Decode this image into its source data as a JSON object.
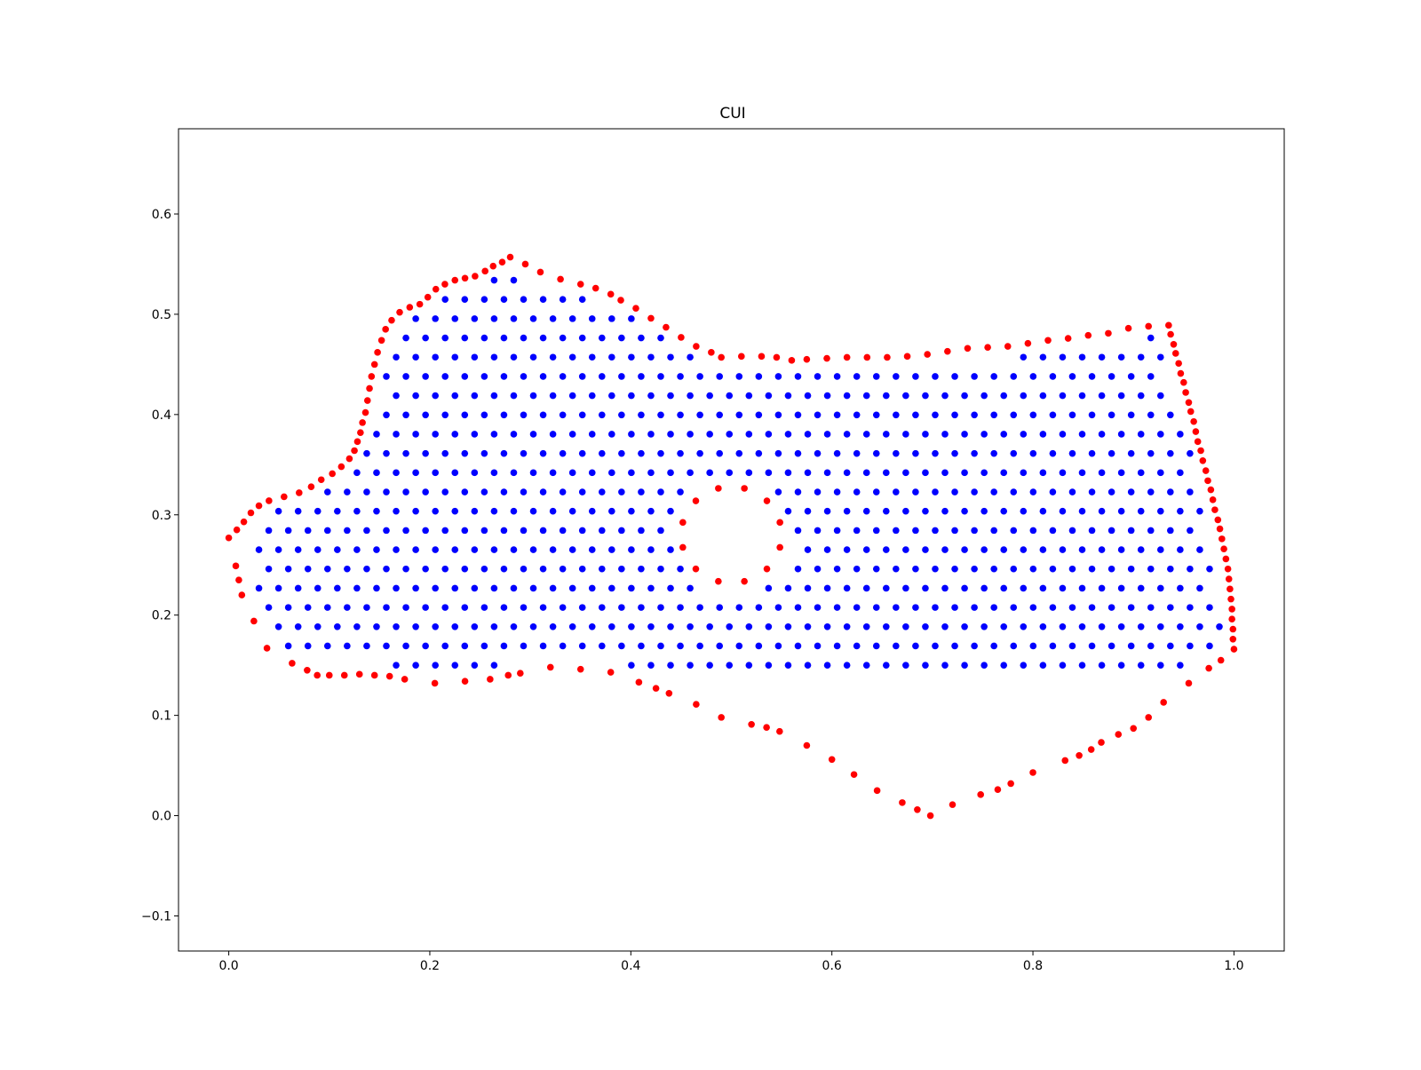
{
  "chart_data": {
    "type": "scatter",
    "title": "CUI",
    "xlabel": "",
    "ylabel": "",
    "xlim": [
      -0.05,
      1.05
    ],
    "ylim": [
      -0.135,
      0.685
    ],
    "xticks": [
      0.0,
      0.2,
      0.4,
      0.6,
      0.8,
      1.0
    ],
    "xtick_labels": [
      "0.0",
      "0.2",
      "0.4",
      "0.6",
      "0.8",
      "1.0"
    ],
    "yticks": [
      -0.1,
      0.0,
      0.1,
      0.2,
      0.3,
      0.4,
      0.5,
      0.6
    ],
    "ytick_labels": [
      "−0.1",
      "0.0",
      "0.1",
      "0.2",
      "0.3",
      "0.4",
      "0.5",
      "0.6"
    ],
    "grid": false,
    "legend": "none",
    "series": [
      {
        "role": "boundary",
        "color": "#ff0000",
        "outer_boundary": [
          [
            0.0,
            0.277
          ],
          [
            0.008,
            0.285
          ],
          [
            0.015,
            0.293
          ],
          [
            0.022,
            0.302
          ],
          [
            0.03,
            0.309
          ],
          [
            0.04,
            0.314
          ],
          [
            0.055,
            0.318
          ],
          [
            0.07,
            0.322
          ],
          [
            0.082,
            0.328
          ],
          [
            0.092,
            0.335
          ],
          [
            0.103,
            0.341
          ],
          [
            0.112,
            0.348
          ],
          [
            0.12,
            0.356
          ],
          [
            0.125,
            0.364
          ],
          [
            0.128,
            0.373
          ],
          [
            0.131,
            0.382
          ],
          [
            0.133,
            0.392
          ],
          [
            0.136,
            0.402
          ],
          [
            0.138,
            0.414
          ],
          [
            0.14,
            0.426
          ],
          [
            0.142,
            0.438
          ],
          [
            0.145,
            0.45
          ],
          [
            0.148,
            0.462
          ],
          [
            0.152,
            0.474
          ],
          [
            0.156,
            0.485
          ],
          [
            0.162,
            0.494
          ],
          [
            0.17,
            0.502
          ],
          [
            0.18,
            0.507
          ],
          [
            0.19,
            0.51
          ],
          [
            0.198,
            0.517
          ],
          [
            0.206,
            0.525
          ],
          [
            0.215,
            0.53
          ],
          [
            0.225,
            0.534
          ],
          [
            0.235,
            0.536
          ],
          [
            0.245,
            0.538
          ],
          [
            0.255,
            0.543
          ],
          [
            0.263,
            0.548
          ],
          [
            0.272,
            0.552
          ],
          [
            0.28,
            0.557
          ],
          [
            0.295,
            0.55
          ],
          [
            0.31,
            0.542
          ],
          [
            0.33,
            0.535
          ],
          [
            0.35,
            0.53
          ],
          [
            0.365,
            0.526
          ],
          [
            0.38,
            0.52
          ],
          [
            0.39,
            0.514
          ],
          [
            0.405,
            0.506
          ],
          [
            0.42,
            0.496
          ],
          [
            0.435,
            0.487
          ],
          [
            0.45,
            0.477
          ],
          [
            0.465,
            0.468
          ],
          [
            0.48,
            0.462
          ],
          [
            0.49,
            0.457
          ],
          [
            0.51,
            0.458
          ],
          [
            0.53,
            0.458
          ],
          [
            0.545,
            0.457
          ],
          [
            0.56,
            0.454
          ],
          [
            0.575,
            0.455
          ],
          [
            0.595,
            0.456
          ],
          [
            0.615,
            0.457
          ],
          [
            0.635,
            0.457
          ],
          [
            0.655,
            0.457
          ],
          [
            0.675,
            0.458
          ],
          [
            0.695,
            0.46
          ],
          [
            0.715,
            0.463
          ],
          [
            0.735,
            0.466
          ],
          [
            0.755,
            0.467
          ],
          [
            0.775,
            0.468
          ],
          [
            0.795,
            0.471
          ],
          [
            0.815,
            0.474
          ],
          [
            0.835,
            0.476
          ],
          [
            0.855,
            0.479
          ],
          [
            0.875,
            0.481
          ],
          [
            0.895,
            0.486
          ],
          [
            0.915,
            0.488
          ],
          [
            0.935,
            0.489
          ],
          [
            0.937,
            0.48
          ],
          [
            0.94,
            0.47
          ],
          [
            0.942,
            0.461
          ],
          [
            0.945,
            0.451
          ],
          [
            0.947,
            0.441
          ],
          [
            0.95,
            0.432
          ],
          [
            0.952,
            0.422
          ],
          [
            0.955,
            0.412
          ],
          [
            0.957,
            0.403
          ],
          [
            0.96,
            0.393
          ],
          [
            0.962,
            0.383
          ],
          [
            0.964,
            0.373
          ],
          [
            0.967,
            0.364
          ],
          [
            0.969,
            0.354
          ],
          [
            0.972,
            0.344
          ],
          [
            0.974,
            0.334
          ],
          [
            0.977,
            0.325
          ],
          [
            0.979,
            0.315
          ],
          [
            0.981,
            0.305
          ],
          [
            0.984,
            0.295
          ],
          [
            0.986,
            0.286
          ],
          [
            0.988,
            0.276
          ],
          [
            0.99,
            0.266
          ],
          [
            0.992,
            0.256
          ],
          [
            0.994,
            0.246
          ],
          [
            0.995,
            0.236
          ],
          [
            0.996,
            0.226
          ],
          [
            0.997,
            0.216
          ],
          [
            0.998,
            0.206
          ],
          [
            0.998,
            0.196
          ],
          [
            0.999,
            0.186
          ],
          [
            0.999,
            0.176
          ],
          [
            1.0,
            0.166
          ],
          [
            0.987,
            0.155
          ],
          [
            0.975,
            0.147
          ],
          [
            0.955,
            0.132
          ],
          [
            0.93,
            0.113
          ],
          [
            0.915,
            0.098
          ],
          [
            0.9,
            0.087
          ],
          [
            0.885,
            0.081
          ],
          [
            0.868,
            0.073
          ],
          [
            0.858,
            0.066
          ],
          [
            0.846,
            0.06
          ],
          [
            0.832,
            0.055
          ],
          [
            0.8,
            0.043
          ],
          [
            0.778,
            0.032
          ],
          [
            0.765,
            0.026
          ],
          [
            0.748,
            0.021
          ],
          [
            0.72,
            0.011
          ],
          [
            0.698,
            0.0
          ],
          [
            0.685,
            0.006
          ],
          [
            0.67,
            0.013
          ],
          [
            0.645,
            0.025
          ],
          [
            0.622,
            0.041
          ],
          [
            0.6,
            0.056
          ],
          [
            0.575,
            0.07
          ],
          [
            0.548,
            0.084
          ],
          [
            0.535,
            0.088
          ],
          [
            0.52,
            0.091
          ],
          [
            0.49,
            0.098
          ],
          [
            0.465,
            0.111
          ],
          [
            0.438,
            0.122
          ],
          [
            0.425,
            0.127
          ],
          [
            0.408,
            0.133
          ],
          [
            0.38,
            0.143
          ],
          [
            0.35,
            0.146
          ],
          [
            0.32,
            0.148
          ],
          [
            0.29,
            0.142
          ],
          [
            0.278,
            0.14
          ],
          [
            0.26,
            0.136
          ],
          [
            0.235,
            0.134
          ],
          [
            0.205,
            0.132
          ],
          [
            0.175,
            0.136
          ],
          [
            0.16,
            0.139
          ],
          [
            0.145,
            0.14
          ],
          [
            0.13,
            0.141
          ],
          [
            0.115,
            0.14
          ],
          [
            0.1,
            0.14
          ],
          [
            0.088,
            0.14
          ],
          [
            0.078,
            0.145
          ],
          [
            0.063,
            0.152
          ],
          [
            0.038,
            0.167
          ],
          [
            0.025,
            0.194
          ],
          [
            0.013,
            0.22
          ],
          [
            0.01,
            0.235
          ],
          [
            0.007,
            0.249
          ]
        ],
        "hole_boundary": {
          "center": [
            0.5,
            0.28
          ],
          "radius_x": 0.05,
          "radius_y": 0.048,
          "points": 12
        }
      },
      {
        "role": "interior",
        "color": "#0000ff",
        "layout": "staggered grid",
        "dx": 0.0195,
        "dy": 0.0192,
        "x_start": 0.03,
        "y_start": 0.15
      }
    ]
  }
}
